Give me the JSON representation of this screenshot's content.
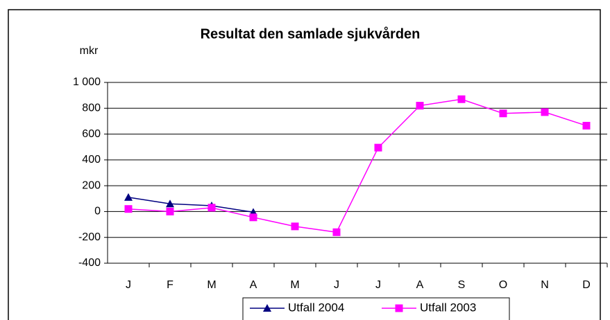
{
  "chart_data": {
    "type": "line",
    "title": "Resultat den samlade sjukvården",
    "y_label": "mkr",
    "categories": [
      "J",
      "F",
      "M",
      "A",
      "M",
      "J",
      "J",
      "A",
      "S",
      "O",
      "N",
      "D"
    ],
    "series": [
      {
        "name": "Utfall 2004",
        "color": "#000080",
        "marker": "triangle",
        "values": [
          110,
          60,
          45,
          -5,
          null,
          null,
          null,
          null,
          null,
          null,
          null,
          null
        ]
      },
      {
        "name": "Utfall 2003",
        "color": "#ff00ff",
        "marker": "square",
        "values": [
          20,
          0,
          30,
          -45,
          -115,
          -160,
          495,
          820,
          870,
          760,
          770,
          665
        ]
      }
    ],
    "ylim": [
      -400,
      1000
    ],
    "yticks": [
      -400,
      -200,
      0,
      200,
      400,
      600,
      800,
      {
        "value": 1000,
        "label": "1 000"
      }
    ],
    "grid": true,
    "legend": "bottom"
  }
}
